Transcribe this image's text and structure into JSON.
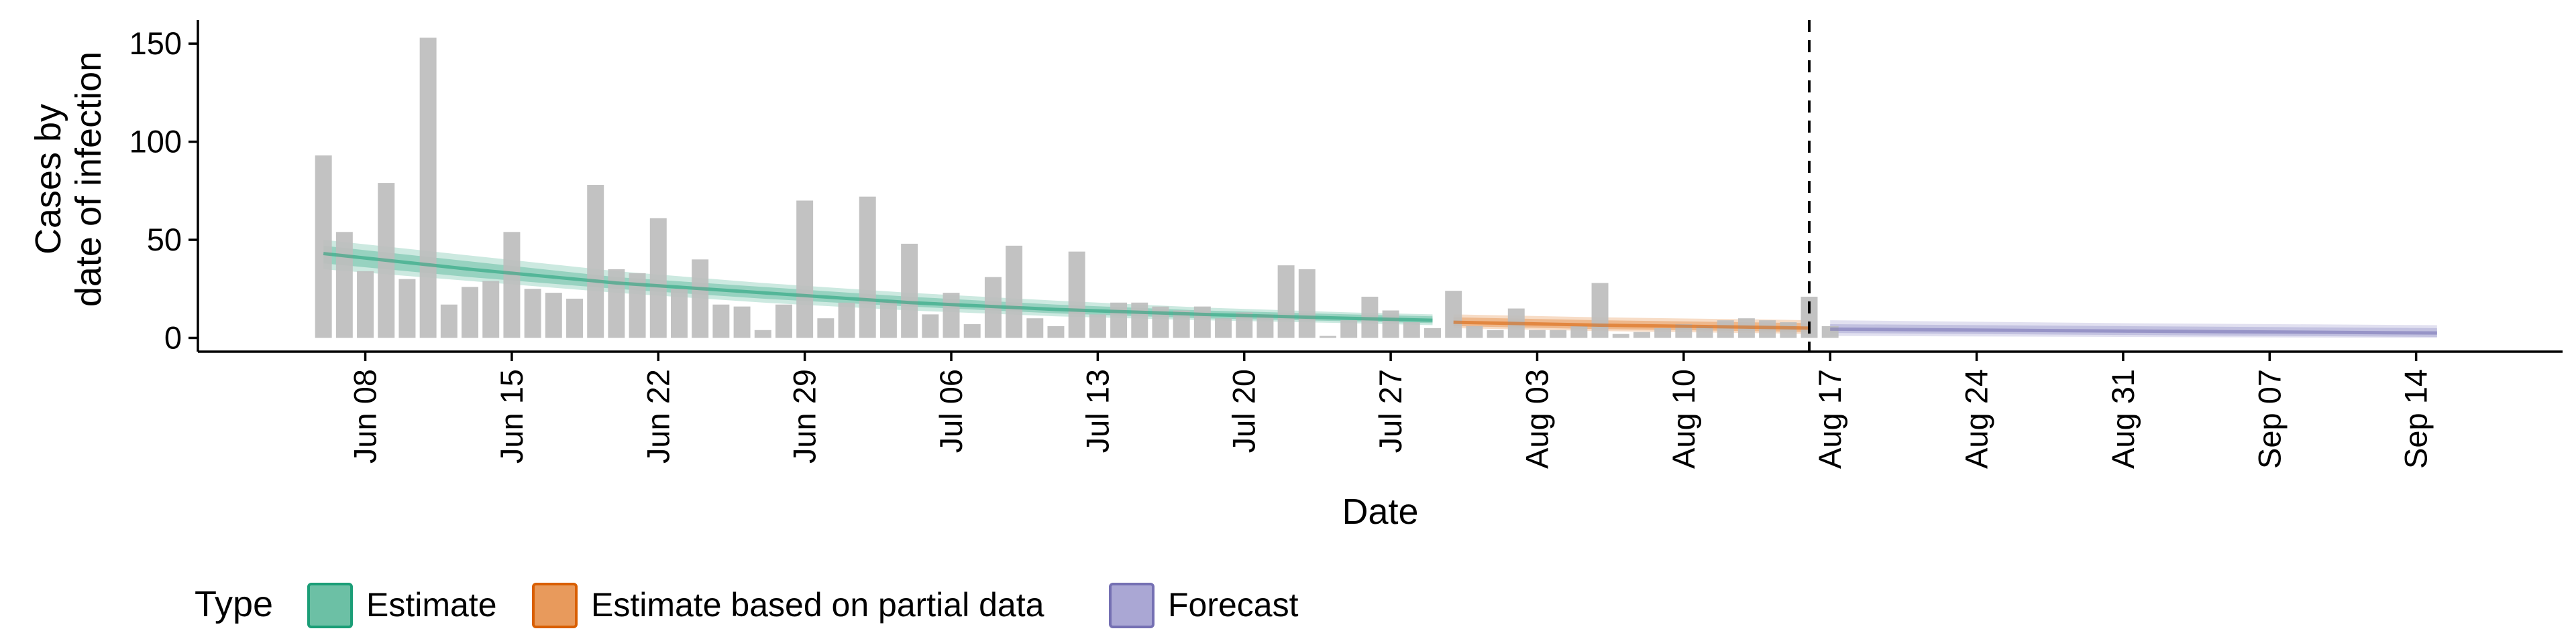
{
  "chart_data": {
    "type": "bar",
    "xlabel": "Date",
    "ylabel_lines": [
      "Cases by",
      "date of infection"
    ],
    "x_range": [
      "2020-05-31",
      "2020-09-21"
    ],
    "ylim": [
      -7,
      162
    ],
    "y_ticks": [
      0,
      50,
      100,
      150
    ],
    "x_ticks": [
      {
        "date": "2020-06-08",
        "label": "Jun 08"
      },
      {
        "date": "2020-06-15",
        "label": "Jun 15"
      },
      {
        "date": "2020-06-22",
        "label": "Jun 22"
      },
      {
        "date": "2020-06-29",
        "label": "Jun 29"
      },
      {
        "date": "2020-07-06",
        "label": "Jul 06"
      },
      {
        "date": "2020-07-13",
        "label": "Jul 13"
      },
      {
        "date": "2020-07-20",
        "label": "Jul 20"
      },
      {
        "date": "2020-07-27",
        "label": "Jul 27"
      },
      {
        "date": "2020-08-03",
        "label": "Aug 03"
      },
      {
        "date": "2020-08-10",
        "label": "Aug 10"
      },
      {
        "date": "2020-08-17",
        "label": "Aug 17"
      },
      {
        "date": "2020-08-24",
        "label": "Aug 24"
      },
      {
        "date": "2020-08-31",
        "label": "Aug 31"
      },
      {
        "date": "2020-09-07",
        "label": "Sep 07"
      },
      {
        "date": "2020-09-14",
        "label": "Sep 14"
      }
    ],
    "bars": {
      "start_date": "2020-06-06",
      "color": "#bdbdbd",
      "values": [
        93,
        54,
        34,
        79,
        30,
        153,
        17,
        26,
        29,
        54,
        25,
        23,
        20,
        78,
        35,
        33,
        61,
        25,
        40,
        17,
        16,
        4,
        17,
        70,
        10,
        18,
        72,
        19,
        48,
        12,
        23,
        7,
        31,
        47,
        10,
        6,
        44,
        12,
        18,
        18,
        16,
        14,
        16,
        10,
        13,
        12,
        37,
        35,
        1,
        9,
        21,
        14,
        8,
        5,
        24,
        6,
        4,
        15,
        4,
        4,
        6,
        28,
        2,
        3,
        5,
        7,
        6,
        9,
        10,
        9,
        8,
        21,
        6
      ]
    },
    "forecast_cutoff_date": "2020-08-16",
    "series": [
      {
        "name": "Estimate",
        "color": "#1b9e77",
        "fill": "#6cc0a5",
        "points": [
          {
            "date": "2020-06-06",
            "median": 43,
            "lower": 38,
            "upper": 47,
            "lower90": 35,
            "upper90": 50
          },
          {
            "date": "2020-06-13",
            "median": 35,
            "lower": 31,
            "upper": 39,
            "lower90": 29,
            "upper90": 42
          },
          {
            "date": "2020-06-20",
            "median": 28,
            "lower": 25,
            "upper": 31,
            "lower90": 23,
            "upper90": 34
          },
          {
            "date": "2020-06-27",
            "median": 23,
            "lower": 20,
            "upper": 26,
            "lower90": 18,
            "upper90": 28
          },
          {
            "date": "2020-07-04",
            "median": 18,
            "lower": 16,
            "upper": 21,
            "lower90": 14,
            "upper90": 23
          },
          {
            "date": "2020-07-11",
            "median": 14.5,
            "lower": 12.5,
            "upper": 17,
            "lower90": 11,
            "upper90": 19
          },
          {
            "date": "2020-07-18",
            "median": 12,
            "lower": 10,
            "upper": 14,
            "lower90": 9,
            "upper90": 15.5
          },
          {
            "date": "2020-07-25",
            "median": 10,
            "lower": 8.5,
            "upper": 12,
            "lower90": 7.5,
            "upper90": 13
          },
          {
            "date": "2020-07-29",
            "median": 9,
            "lower": 7.5,
            "upper": 11,
            "lower90": 6.5,
            "upper90": 12
          }
        ]
      },
      {
        "name": "Estimate based on partial data",
        "color": "#d95f02",
        "fill": "#e89a5c",
        "points": [
          {
            "date": "2020-07-30",
            "median": 8,
            "lower": 6,
            "upper": 10.5,
            "lower90": 5,
            "upper90": 12
          },
          {
            "date": "2020-08-06",
            "median": 6.5,
            "lower": 4.5,
            "upper": 9,
            "lower90": 3.5,
            "upper90": 10.5
          },
          {
            "date": "2020-08-13",
            "median": 5.5,
            "lower": 3.5,
            "upper": 8,
            "lower90": 2.5,
            "upper90": 9.5
          },
          {
            "date": "2020-08-16",
            "median": 5,
            "lower": 3,
            "upper": 7.5,
            "lower90": 2,
            "upper90": 9
          }
        ]
      },
      {
        "name": "Forecast",
        "color": "#7570b3",
        "fill": "#aaa7d4",
        "points": [
          {
            "date": "2020-08-17",
            "median": 4.5,
            "lower": 2.5,
            "upper": 7,
            "lower90": 1,
            "upper90": 9
          },
          {
            "date": "2020-08-31",
            "median": 3.5,
            "lower": 1.5,
            "upper": 6,
            "lower90": 0.5,
            "upper90": 7.5
          },
          {
            "date": "2020-09-15",
            "median": 2.5,
            "lower": 0.5,
            "upper": 5,
            "lower90": 0,
            "upper90": 6.5
          }
        ]
      }
    ],
    "legend": {
      "title": "Type",
      "position": "bottom-left",
      "entries": [
        "Estimate",
        "Estimate based on partial data",
        "Forecast"
      ]
    },
    "grid": false
  }
}
